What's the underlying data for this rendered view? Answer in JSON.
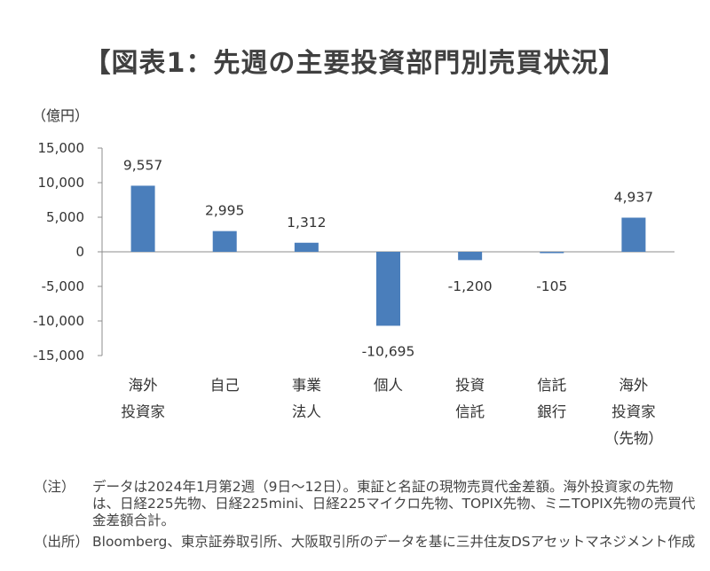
{
  "title": "【図表1：先週の主要投資部門別売買状況】",
  "chart_data": {
    "type": "bar",
    "unit_label": "（億円）",
    "ylim": [
      -15000,
      15000
    ],
    "yticks": [
      "15,000",
      "10,000",
      "5,000",
      "0",
      "-5,000",
      "-10,000",
      "-15,000"
    ],
    "ytick_values": [
      15000,
      10000,
      5000,
      0,
      -5000,
      -10000,
      -15000
    ],
    "categories": [
      [
        "海外",
        "投資家"
      ],
      [
        "自己"
      ],
      [
        "事業",
        "法人"
      ],
      [
        "個人"
      ],
      [
        "投資",
        "信託"
      ],
      [
        "信託",
        "銀行"
      ],
      [
        "海外",
        "投資家",
        "（先物）"
      ]
    ],
    "values": [
      9557,
      2995,
      1312,
      -10695,
      -1200,
      -105,
      4937
    ],
    "value_labels": [
      "9,557",
      "2,995",
      "1,312",
      "-10,695",
      "-1,200",
      "-105",
      "4,937"
    ],
    "bar_color": "#4a7ebb",
    "grid": false,
    "legend": "none"
  },
  "notes": [
    {
      "tag": "（注）",
      "text": "データは2024年1月第2週（9日～12日）。東証と名証の現物売買代金差額。海外投資家の先物は、日経225先物、日経225mini、日経225マイクロ先物、TOPIX先物、ミニTOPIX先物の売買代金差額合計。"
    },
    {
      "tag": "（出所）",
      "text": "Bloomberg、東京証券取引所、大阪取引所のデータを基に三井住友DSアセットマネジメント作成"
    }
  ]
}
